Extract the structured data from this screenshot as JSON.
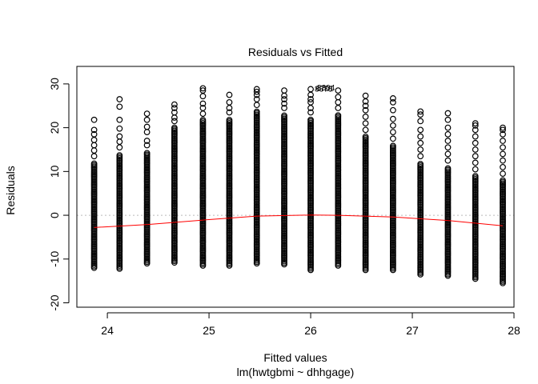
{
  "chart_data": {
    "type": "scatter",
    "title": "Residuals vs Fitted",
    "xlabel": "Fitted values",
    "xlabel_sub": "lm(hwtgbmi ~ dhhgage)",
    "ylabel": "Residuals",
    "xlim": [
      23.7,
      28.0
    ],
    "ylim": [
      -21,
      34
    ],
    "x_ticks": [
      24,
      25,
      26,
      27,
      28
    ],
    "y_ticks": [
      -20,
      -10,
      0,
      10,
      20,
      30
    ],
    "point_labels": [
      "8378",
      "6701",
      "8304"
    ],
    "point_color": "#000000",
    "smooth_color": "#ff0000",
    "reference_line": {
      "y": 0,
      "color": "#bbbbbb",
      "style": "dotted"
    },
    "groups": [
      {
        "x": 23.87,
        "ymin": -12.0,
        "dense_top": 12.0,
        "outliers": [
          13.5,
          14.8,
          16.0,
          17.2,
          18.5,
          19.5,
          21.8
        ]
      },
      {
        "x": 24.12,
        "ymin": -12.2,
        "dense_top": 14.0,
        "outliers": [
          15.5,
          16.8,
          18.0,
          19.8,
          21.8,
          24.8,
          26.5
        ]
      },
      {
        "x": 24.39,
        "ymin": -11.0,
        "dense_top": 14.5,
        "outliers": [
          16.0,
          17.0,
          19.0,
          20.2,
          21.8,
          23.2
        ]
      },
      {
        "x": 24.66,
        "ymin": -10.8,
        "dense_top": 20.0,
        "outliers": [
          21.5,
          22.3,
          23.5,
          24.5,
          25.3
        ]
      },
      {
        "x": 24.94,
        "ymin": -11.5,
        "dense_top": 22.0,
        "outliers": [
          23.2,
          24.5,
          25.5,
          27.2,
          28.5,
          29.0
        ]
      },
      {
        "x": 25.2,
        "ymin": -11.5,
        "dense_top": 22.0,
        "outliers": [
          23.5,
          24.5,
          25.8,
          27.5
        ]
      },
      {
        "x": 25.47,
        "ymin": -11.0,
        "dense_top": 24.0,
        "outliers": [
          25.2,
          26.5,
          27.5,
          28.2,
          28.8
        ]
      },
      {
        "x": 25.74,
        "ymin": -11.2,
        "dense_top": 23.0,
        "outliers": [
          24.5,
          25.5,
          26.5,
          27.3,
          28.5
        ]
      },
      {
        "x": 26.0,
        "ymin": -12.5,
        "dense_top": 22.0,
        "outliers": [
          23.5,
          24.5,
          25.8,
          26.5,
          27.5,
          28.8
        ]
      },
      {
        "x": 26.27,
        "ymin": -11.5,
        "dense_top": 23.0,
        "outliers": [
          24.5,
          25.8,
          27.0,
          28.5
        ]
      },
      {
        "x": 26.54,
        "ymin": -12.5,
        "dense_top": 18.0,
        "outliers": [
          19.5,
          21.0,
          22.5,
          24.0,
          25.0,
          26.0,
          27.3
        ]
      },
      {
        "x": 26.81,
        "ymin": -12.5,
        "dense_top": 16.0,
        "outliers": [
          17.5,
          19.0,
          20.5,
          22.0,
          24.0,
          25.8,
          26.7
        ]
      },
      {
        "x": 27.08,
        "ymin": -13.5,
        "dense_top": 12.0,
        "outliers": [
          13.5,
          15.0,
          16.5,
          18.0,
          19.5,
          21.5,
          23.0,
          23.7
        ]
      },
      {
        "x": 27.35,
        "ymin": -13.8,
        "dense_top": 11.0,
        "outliers": [
          12.5,
          14.0,
          15.5,
          17.0,
          18.5,
          20.0,
          21.8,
          23.3
        ]
      },
      {
        "x": 27.62,
        "ymin": -14.5,
        "dense_top": 9.0,
        "outliers": [
          10.5,
          12.0,
          13.5,
          15.0,
          16.5,
          18.0,
          19.5,
          20.5,
          21.0
        ]
      },
      {
        "x": 27.89,
        "ymin": -15.5,
        "dense_top": 8.0,
        "outliers": [
          9.5,
          11.0,
          12.5,
          14.0,
          15.5,
          17.0,
          18.5,
          19.5,
          20.0
        ]
      }
    ],
    "smooth_line": [
      {
        "x": 23.87,
        "y": -2.8
      },
      {
        "x": 24.4,
        "y": -2.1
      },
      {
        "x": 24.94,
        "y": -1.1
      },
      {
        "x": 25.47,
        "y": -0.2
      },
      {
        "x": 26.0,
        "y": 0.05
      },
      {
        "x": 26.27,
        "y": 0.0
      },
      {
        "x": 26.81,
        "y": -0.4
      },
      {
        "x": 27.35,
        "y": -1.2
      },
      {
        "x": 27.89,
        "y": -2.4
      }
    ]
  }
}
